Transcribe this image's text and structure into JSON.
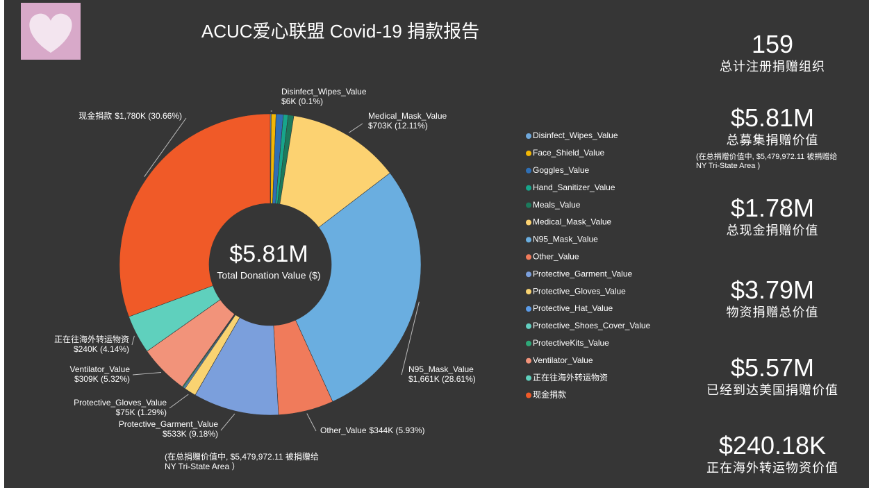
{
  "header": {
    "title": "ACUC爱心联盟 Covid-19 捐款报告"
  },
  "chart_data": {
    "type": "donut",
    "center_value": "$5.81M",
    "center_label": "Total Donation Value ($)",
    "categories": [
      "Disinfect_Wipes_Value",
      "Face_Shield_Value",
      "Goggles_Value",
      "Hand_Sanitizer_Value",
      "Meals_Value",
      "Medical_Mask_Value",
      "N95_Mask_Value",
      "Other_Value",
      "Protective_Garment_Value",
      "Protective_Gloves_Value",
      "Protective_Hat_Value",
      "Protective_Shoes_Cover_Value",
      "ProtectiveKits_Value",
      "Ventilator_Value",
      "正在往海外转运物资",
      "现金捐款"
    ],
    "values": [
      6,
      30,
      45,
      30,
      35,
      703,
      1661,
      344,
      533,
      75,
      8,
      6,
      5,
      309,
      240,
      1780
    ],
    "value_labels": [
      "$6K (0.1%)",
      null,
      null,
      null,
      null,
      "$703K (12.11%)",
      "$1,661K (28.61%)",
      "$344K (5.93%)",
      "$533K (9.18%)",
      "$75K (1.29%)",
      null,
      null,
      null,
      "$309K (5.32%)",
      "$240K (4.14%)",
      "$1,780K (30.66%)"
    ],
    "colors": [
      "#6fa8dc",
      "#f2b705",
      "#2f6fb5",
      "#17a58b",
      "#1c7a5c",
      "#fcd271",
      "#6aaee0",
      "#f07b5b",
      "#7b9fdc",
      "#f9d371",
      "#5b9be8",
      "#63cfc1",
      "#2ea878",
      "#f2937a",
      "#5fd0bd",
      "#f05a28"
    ],
    "note": "(在总捐赠价值中, $5,479,972.11 被捐赠给 NY Tri-State Area ）"
  },
  "cards": [
    {
      "value": "159",
      "label": "总计注册捐赠组织"
    },
    {
      "value": "$5.81M",
      "label": "总募集捐赠价值",
      "note": "(在总捐赠价值中, $5,479,972.11 被捐赠给NY Tri-State Area )"
    },
    {
      "value": "$1.78M",
      "label": "总现金捐赠价值"
    },
    {
      "value": "$3.79M",
      "label": "物资捐赠总价值"
    },
    {
      "value": "$5.57M",
      "label": "已经到达美国捐赠价值"
    },
    {
      "value": "$240.18K",
      "label": "正在海外转运物资价值"
    }
  ]
}
